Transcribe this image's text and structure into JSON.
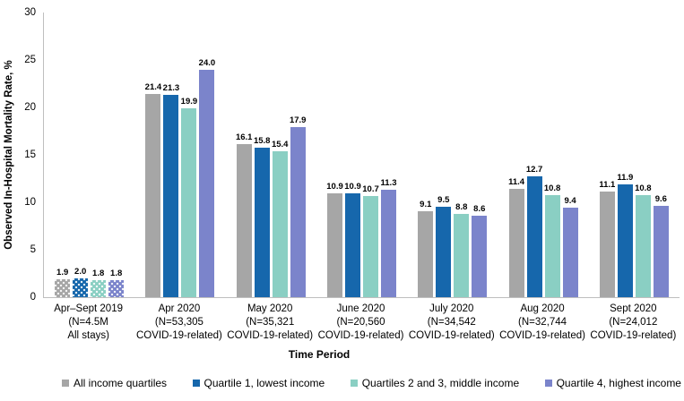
{
  "figure": {
    "background": "#FFFFFF",
    "axis_line_color": "#BFBFBF"
  },
  "chart_data": {
    "type": "bar",
    "title": "",
    "ylabel": "Observed In-Hospital Mortality Rate, %",
    "xlabel": "Time Period",
    "ylim": [
      0,
      30
    ],
    "yticks": [
      0,
      5,
      10,
      15,
      20,
      25,
      30
    ],
    "grid": false,
    "legend_position": "bottom",
    "value_label_decimals": 1,
    "first_category_fill_pattern": "white-dots",
    "categories": [
      [
        "Apr–Sept 2019",
        "(N=4.5M",
        "All stays)"
      ],
      [
        "Apr 2020",
        "(N=53,305",
        "COVID-19-related)"
      ],
      [
        "May 2020",
        "(N=35,321",
        "COVID-19-related)"
      ],
      [
        "June 2020",
        "(N=20,560",
        "COVID-19-related)"
      ],
      [
        "July 2020",
        "(N=34,542",
        "COVID-19-related)"
      ],
      [
        "Aug 2020",
        "(N=32,744",
        "COVID-19-related)"
      ],
      [
        "Sept 2020",
        "(N=24,012",
        "COVID-19-related)"
      ]
    ],
    "series": [
      {
        "name": "All income quartiles",
        "color": "#A6A6A6",
        "values": [
          1.9,
          21.4,
          16.1,
          10.9,
          9.1,
          11.4,
          11.1
        ]
      },
      {
        "name": "Quartile 1, lowest income",
        "color": "#1667AC",
        "values": [
          2.0,
          21.3,
          15.8,
          10.9,
          9.5,
          12.7,
          11.9
        ]
      },
      {
        "name": "Quartiles 2 and 3, middle income",
        "color": "#8ACFC3",
        "values": [
          1.8,
          19.9,
          15.4,
          10.7,
          8.8,
          10.8,
          10.8
        ]
      },
      {
        "name": "Quartile 4, highest income",
        "color": "#7B84CB",
        "values": [
          1.8,
          24.0,
          17.9,
          11.3,
          8.6,
          9.4,
          9.6
        ]
      }
    ]
  }
}
